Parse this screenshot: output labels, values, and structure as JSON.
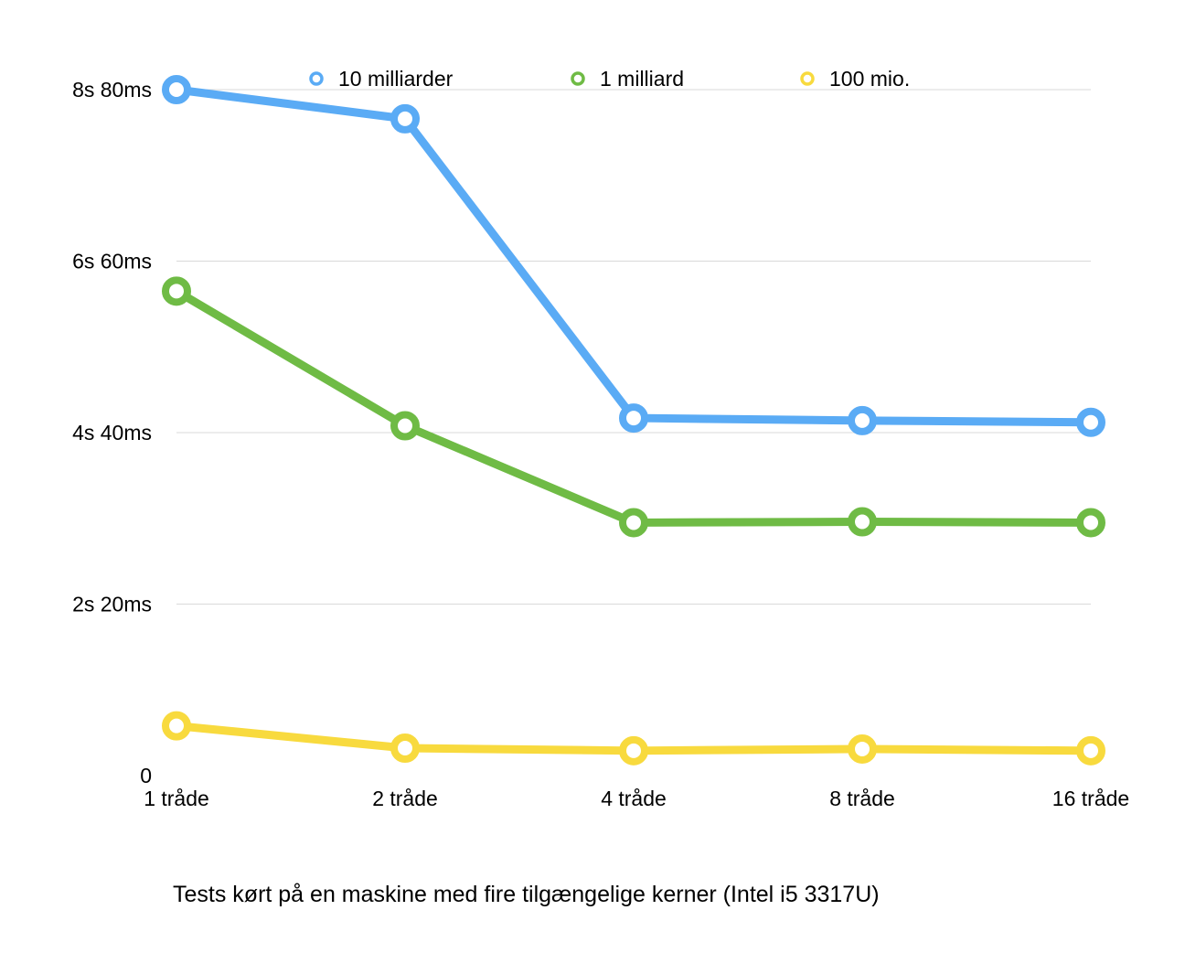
{
  "chart_data": {
    "type": "line",
    "categories": [
      "1 tråde",
      "2 tråde",
      "4 tråde",
      "8 tråde",
      "16 tråde"
    ],
    "y_tick_labels": [
      "0",
      "2s 20ms",
      "4s 40ms",
      "6s 60ms",
      "8s 80ms"
    ],
    "y_tick_values": [
      0,
      20,
      40,
      60,
      80
    ],
    "ylim": [
      0,
      80
    ],
    "grid": true,
    "legend_position": "top",
    "caption": "Tests kørt på en maskine med fire tilgængelige kerner  (Intel i5 3317U)",
    "series": [
      {
        "name": "10 milliarder",
        "color": "#5aabf5",
        "values": [
          80.0,
          76.6,
          41.7,
          41.4,
          41.2
        ]
      },
      {
        "name": "1 milliard",
        "color": "#6fbb45",
        "values": [
          56.5,
          40.8,
          29.5,
          29.6,
          29.5
        ]
      },
      {
        "name": "100 mio.",
        "color": "#f8da3e",
        "values": [
          5.8,
          3.2,
          2.9,
          3.1,
          2.9
        ]
      }
    ]
  }
}
